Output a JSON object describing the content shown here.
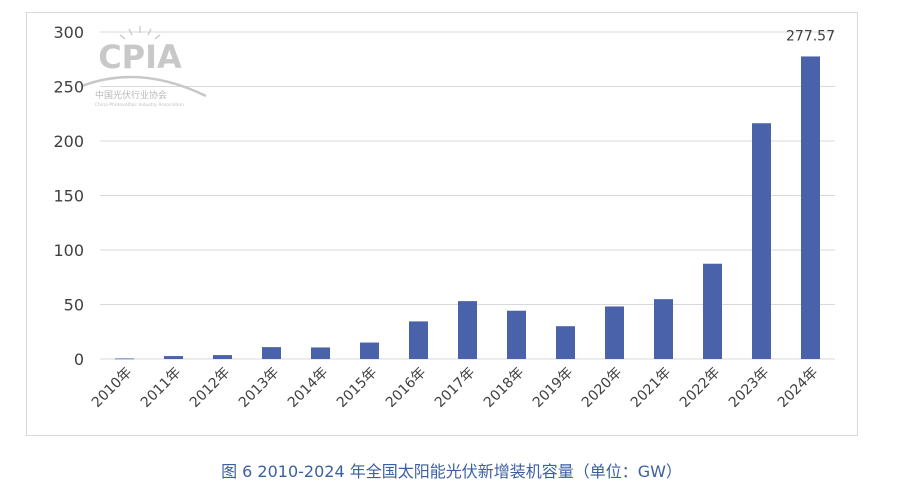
{
  "caption": "图 6   2010-2024 年全国太阳能光伏新增装机容量（单位：GW）",
  "watermark": {
    "logo_text": "CPIA",
    "org_cn": "中国光伏行业协会",
    "org_en": "China Photovoltaic Industry Association"
  },
  "colors": {
    "bar": "#4a62aa",
    "grid": "#d9d9d9",
    "axis_text": "#404040",
    "caption": "#3b5fa3"
  },
  "chart_data": {
    "type": "bar",
    "title": "",
    "xlabel": "",
    "ylabel": "",
    "ylim": [
      0,
      300
    ],
    "yticks": [
      0,
      50,
      100,
      150,
      200,
      250,
      300
    ],
    "grid": true,
    "categories": [
      "2010年",
      "2011年",
      "2012年",
      "2013年",
      "2014年",
      "2015年",
      "2016年",
      "2017年",
      "2018年",
      "2019年",
      "2020年",
      "2021年",
      "2022年",
      "2023年",
      "2024年"
    ],
    "values": [
      0.5,
      2.7,
      3.6,
      10.9,
      10.6,
      15.1,
      34.5,
      53.1,
      44.3,
      30.1,
      48.2,
      54.9,
      87.4,
      216.3,
      277.57
    ],
    "data_labels": [
      null,
      null,
      null,
      null,
      null,
      null,
      null,
      null,
      null,
      null,
      null,
      null,
      null,
      null,
      "277.57"
    ]
  }
}
